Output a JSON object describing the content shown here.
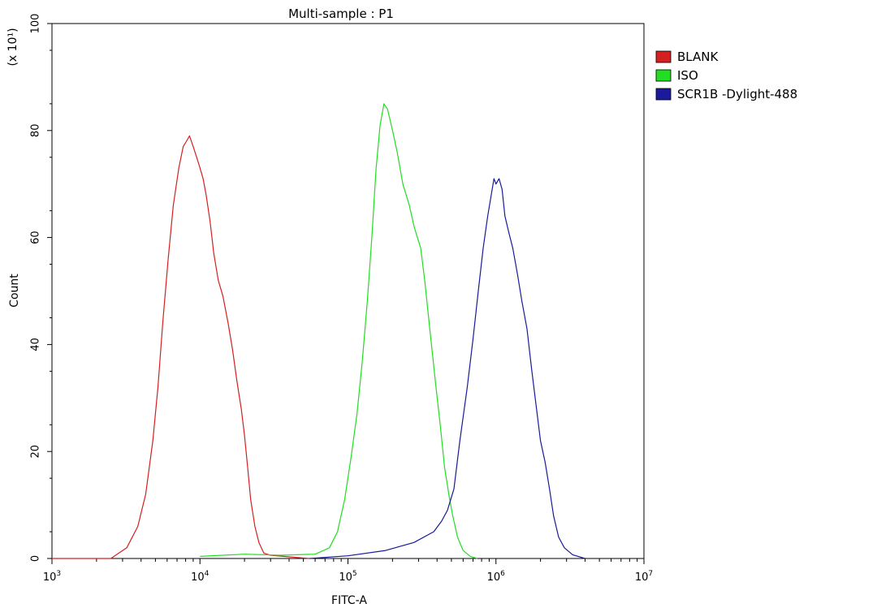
{
  "chart_data": {
    "type": "line",
    "title": "Multi-sample : P1",
    "xlabel": "FITC-A",
    "ylabel": "Count",
    "y_multiplier": "(x 10¹)",
    "x_scale": "log",
    "xlim": [
      1000,
      10000000
    ],
    "ylim": [
      0,
      100
    ],
    "x_ticks": [
      {
        "value": 1000,
        "base": "10",
        "exp": "3"
      },
      {
        "value": 10000,
        "base": "10",
        "exp": "4"
      },
      {
        "value": 100000,
        "base": "10",
        "exp": "5"
      },
      {
        "value": 1000000,
        "base": "10",
        "exp": "6"
      },
      {
        "value": 10000000,
        "base": "10",
        "exp": "7"
      }
    ],
    "y_ticks": [
      "0",
      "20",
      "40",
      "60",
      "80",
      "100"
    ],
    "legend_position": "right-top",
    "series": [
      {
        "name": "BLANK",
        "color": "#d42020",
        "points": [
          [
            1000,
            0
          ],
          [
            2500,
            0
          ],
          [
            3200,
            2
          ],
          [
            3800,
            6
          ],
          [
            4300,
            12
          ],
          [
            4800,
            22
          ],
          [
            5200,
            32
          ],
          [
            5600,
            44
          ],
          [
            6100,
            56
          ],
          [
            6600,
            66
          ],
          [
            7200,
            73
          ],
          [
            7700,
            77
          ],
          [
            8100,
            78
          ],
          [
            8500,
            79
          ],
          [
            9000,
            77
          ],
          [
            9500,
            75
          ],
          [
            10000,
            73
          ],
          [
            10500,
            71
          ],
          [
            11000,
            68
          ],
          [
            11700,
            63
          ],
          [
            12400,
            57
          ],
          [
            13300,
            52
          ],
          [
            14300,
            49
          ],
          [
            15500,
            44
          ],
          [
            16600,
            39
          ],
          [
            17800,
            33
          ],
          [
            19000,
            28
          ],
          [
            20000,
            23
          ],
          [
            21000,
            17
          ],
          [
            22000,
            11
          ],
          [
            23500,
            6
          ],
          [
            25000,
            3
          ],
          [
            27000,
            1
          ],
          [
            30000,
            0.6
          ],
          [
            40000,
            0.3
          ],
          [
            55000,
            0
          ]
        ]
      },
      {
        "name": "ISO",
        "color": "#22dd22",
        "points": [
          [
            10000,
            0.4
          ],
          [
            20000,
            0.8
          ],
          [
            35000,
            0.6
          ],
          [
            60000,
            0.8
          ],
          [
            75000,
            2
          ],
          [
            85000,
            5
          ],
          [
            95000,
            11
          ],
          [
            105000,
            19
          ],
          [
            115000,
            27
          ],
          [
            125000,
            37
          ],
          [
            135000,
            48
          ],
          [
            145000,
            60
          ],
          [
            155000,
            73
          ],
          [
            165000,
            81
          ],
          [
            175000,
            85
          ],
          [
            185000,
            84
          ],
          [
            200000,
            80
          ],
          [
            215000,
            76
          ],
          [
            235000,
            70
          ],
          [
            260000,
            66
          ],
          [
            280000,
            62
          ],
          [
            310000,
            58
          ],
          [
            330000,
            52
          ],
          [
            360000,
            42
          ],
          [
            390000,
            33
          ],
          [
            420000,
            25
          ],
          [
            450000,
            17
          ],
          [
            480000,
            12
          ],
          [
            510000,
            8
          ],
          [
            550000,
            4
          ],
          [
            600000,
            1.5
          ],
          [
            670000,
            0.4
          ],
          [
            750000,
            0
          ]
        ]
      },
      {
        "name": "SCR1B -Dylight-488",
        "color": "#1a1a9a",
        "points": [
          [
            55000,
            0
          ],
          [
            100000,
            0.5
          ],
          [
            180000,
            1.5
          ],
          [
            280000,
            3
          ],
          [
            380000,
            5
          ],
          [
            430000,
            7
          ],
          [
            470000,
            9
          ],
          [
            520000,
            13
          ],
          [
            570000,
            22
          ],
          [
            640000,
            32
          ],
          [
            700000,
            41
          ],
          [
            760000,
            50
          ],
          [
            820000,
            58
          ],
          [
            880000,
            64
          ],
          [
            930000,
            68
          ],
          [
            970000,
            71
          ],
          [
            1000000,
            70
          ],
          [
            1050000,
            71
          ],
          [
            1100000,
            69
          ],
          [
            1150000,
            64
          ],
          [
            1220000,
            61
          ],
          [
            1300000,
            58
          ],
          [
            1400000,
            53
          ],
          [
            1500000,
            48
          ],
          [
            1620000,
            43
          ],
          [
            1750000,
            35
          ],
          [
            1880000,
            28
          ],
          [
            2000000,
            22
          ],
          [
            2150000,
            18
          ],
          [
            2300000,
            13
          ],
          [
            2450000,
            8
          ],
          [
            2650000,
            4
          ],
          [
            2900000,
            2
          ],
          [
            3300000,
            0.7
          ],
          [
            4000000,
            0
          ]
        ]
      }
    ]
  }
}
